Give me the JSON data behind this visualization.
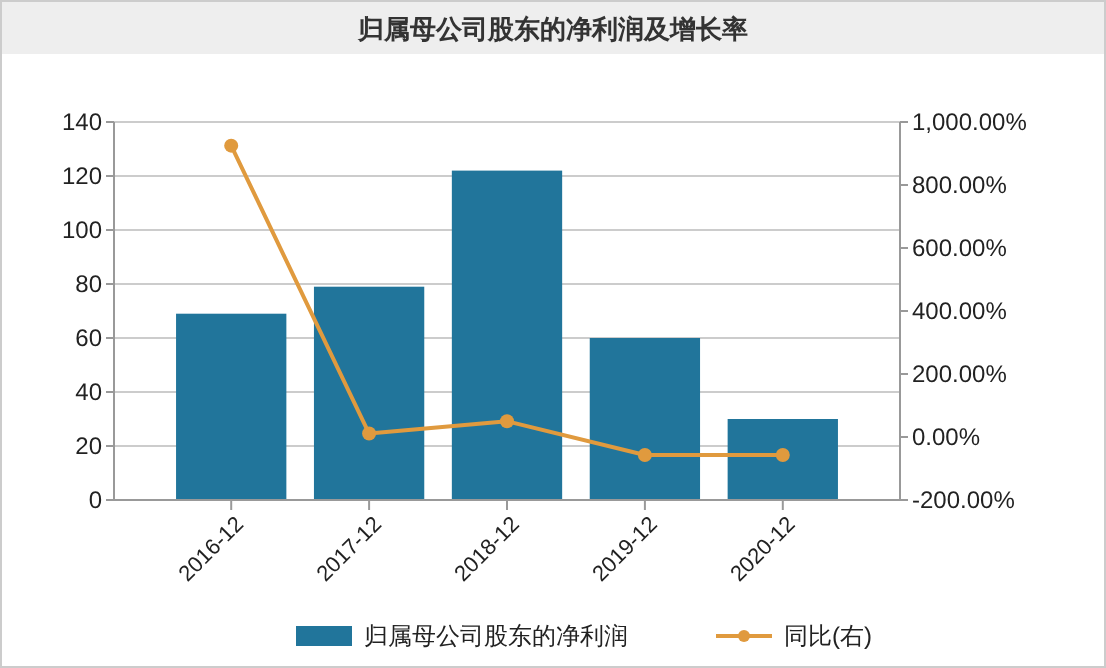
{
  "chart_data": {
    "type": "bar",
    "title": "归属母公司股东的净利润及增长率",
    "categories": [
      "2016-12",
      "2017-12",
      "2018-12",
      "2019-12",
      "2020-12"
    ],
    "series": [
      {
        "name": "归属母公司股东的净利润",
        "color": "#21759b",
        "values": [
          69,
          79,
          122,
          60,
          30
        ]
      },
      {
        "name": "同比(右)",
        "type": "line",
        "axis": "y2",
        "color": "#e09a3e",
        "values": [
          925,
          11,
          50,
          -57,
          -57
        ]
      }
    ],
    "ylim": [
      0,
      140
    ],
    "yticks": [
      0,
      20,
      40,
      60,
      80,
      100,
      120,
      140
    ],
    "y2lim": [
      -200,
      1000
    ],
    "y2ticks": [
      {
        "value": -200,
        "label": "-200.00%"
      },
      {
        "value": 0,
        "label": "0.00%"
      },
      {
        "value": 200,
        "label": "200.00%"
      },
      {
        "value": 400,
        "label": "400.00%"
      },
      {
        "value": 600,
        "label": "600.00%"
      },
      {
        "value": 800,
        "label": "800.00%"
      },
      {
        "value": 1000,
        "label": "1,000.00%"
      }
    ],
    "grid": "y",
    "legend": "bottom",
    "marker": "circle",
    "line_style": "solid"
  }
}
